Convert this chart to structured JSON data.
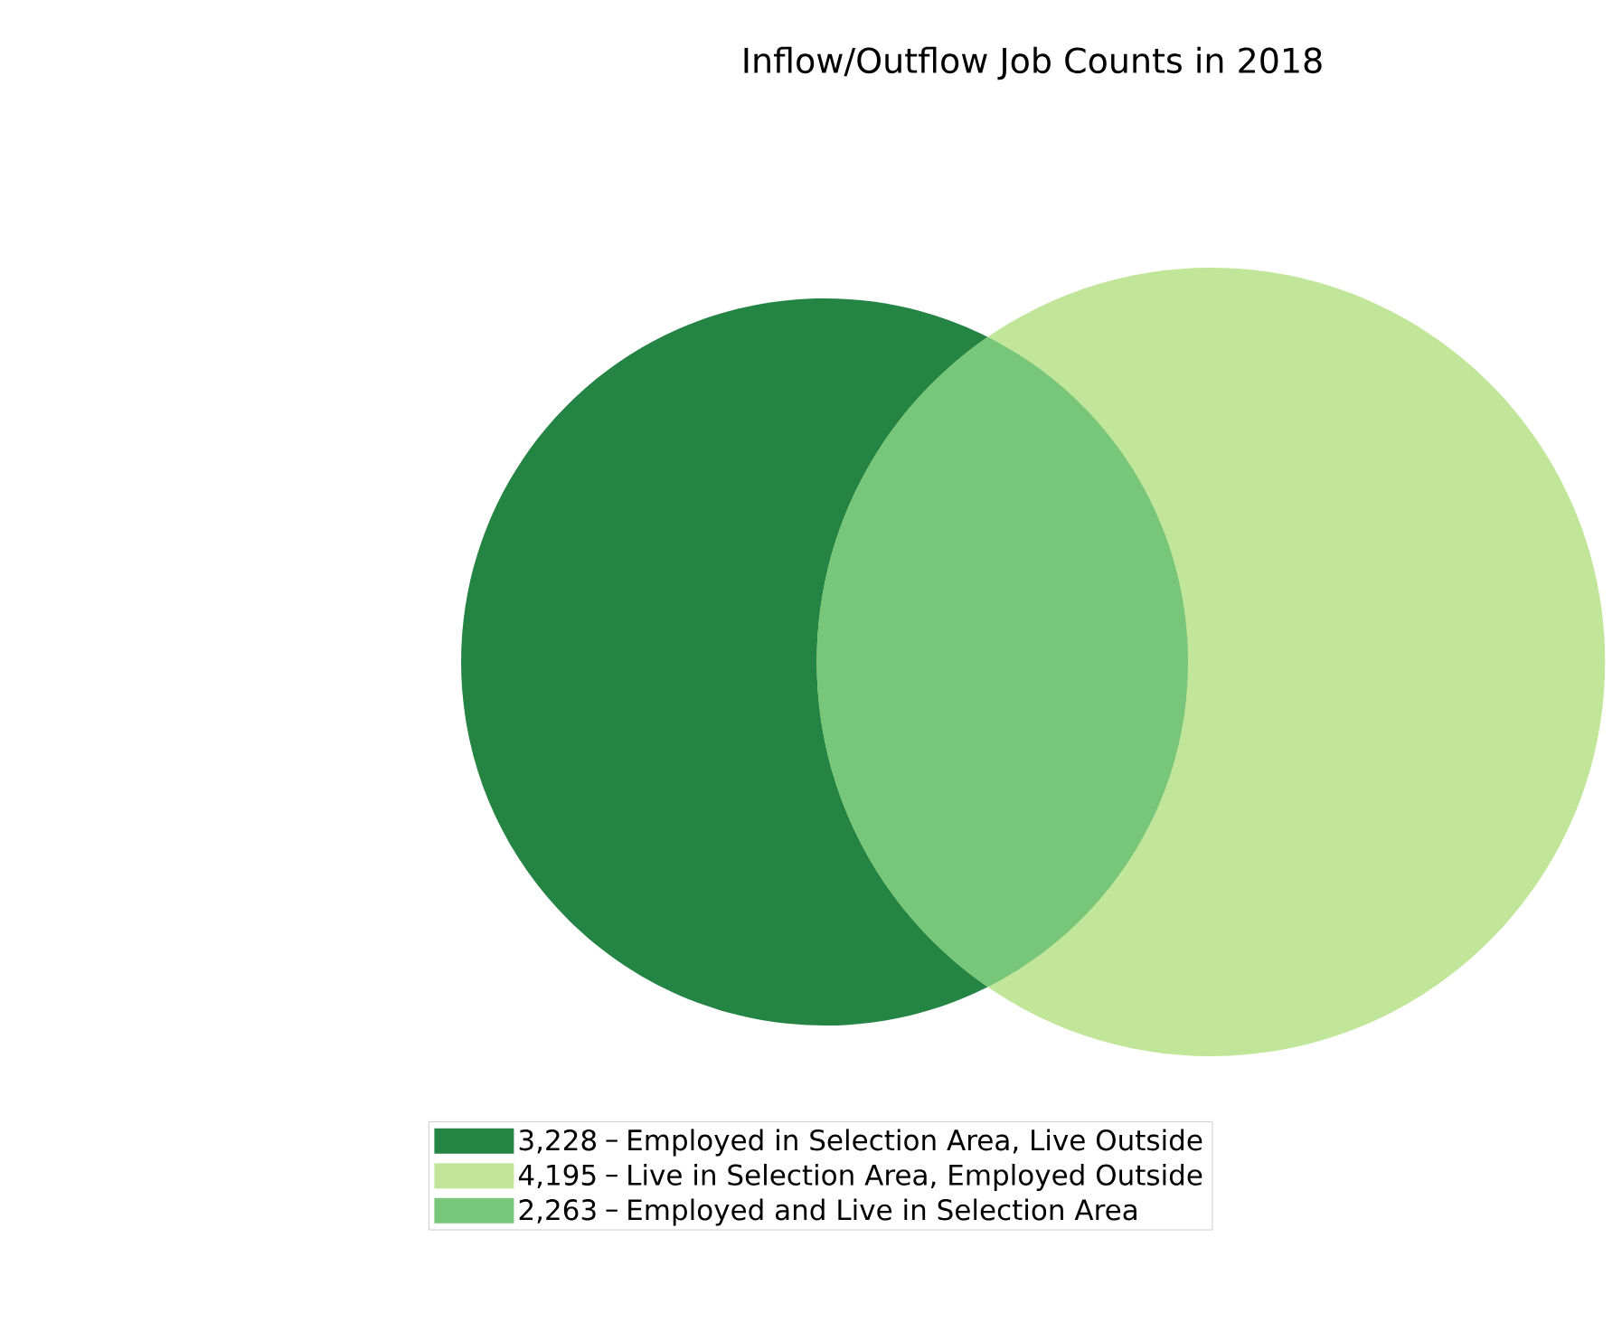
{
  "chart_data": {
    "type": "other",
    "title": "Inflow/Outflow Job Counts in 2018",
    "categories": [
      "Employed in Selection Area, Live Outside",
      "Live in Selection Area, Employed Outside",
      "Employed and Live in Selection Area"
    ],
    "values": [
      3228,
      4195,
      2263
    ],
    "value_labels": [
      "3,228",
      "4,195",
      "2,263"
    ],
    "colors": [
      "#238443",
      "#c2e699",
      "#78c679"
    ]
  }
}
